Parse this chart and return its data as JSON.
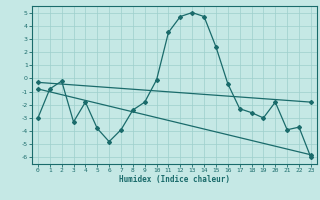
{
  "xlabel": "Humidex (Indice chaleur)",
  "ylabel": "",
  "xlim": [
    -0.5,
    23.5
  ],
  "ylim": [
    -6.5,
    5.5
  ],
  "xticks": [
    0,
    1,
    2,
    3,
    4,
    5,
    6,
    7,
    8,
    9,
    10,
    11,
    12,
    13,
    14,
    15,
    16,
    17,
    18,
    19,
    20,
    21,
    22,
    23
  ],
  "yticks": [
    -6,
    -5,
    -4,
    -3,
    -2,
    -1,
    0,
    1,
    2,
    3,
    4,
    5
  ],
  "bg_color": "#c5e8e5",
  "grid_color": "#9ecfcc",
  "line_color": "#1a6b6b",
  "line1_x": [
    0,
    1,
    2,
    3,
    4,
    5,
    6,
    7,
    8,
    9,
    10,
    11,
    12,
    13,
    14,
    15,
    16,
    17,
    18,
    19,
    20,
    21,
    22,
    23
  ],
  "line1_y": [
    -3.0,
    -0.8,
    -0.2,
    -3.3,
    -1.8,
    -3.8,
    -4.8,
    -3.9,
    -2.4,
    -1.8,
    -0.1,
    3.5,
    4.7,
    5.0,
    4.7,
    2.4,
    -0.4,
    -2.3,
    -2.6,
    -3.0,
    -1.8,
    -3.9,
    -3.7,
    -6.0
  ],
  "line2_x": [
    0,
    23
  ],
  "line2_y": [
    -0.3,
    -1.8
  ],
  "line3_x": [
    0,
    23
  ],
  "line3_y": [
    -0.8,
    -5.8
  ],
  "marker": "D",
  "marker_size": 2.0,
  "line_width": 0.9,
  "tick_fontsize": 4.5,
  "xlabel_fontsize": 5.5
}
